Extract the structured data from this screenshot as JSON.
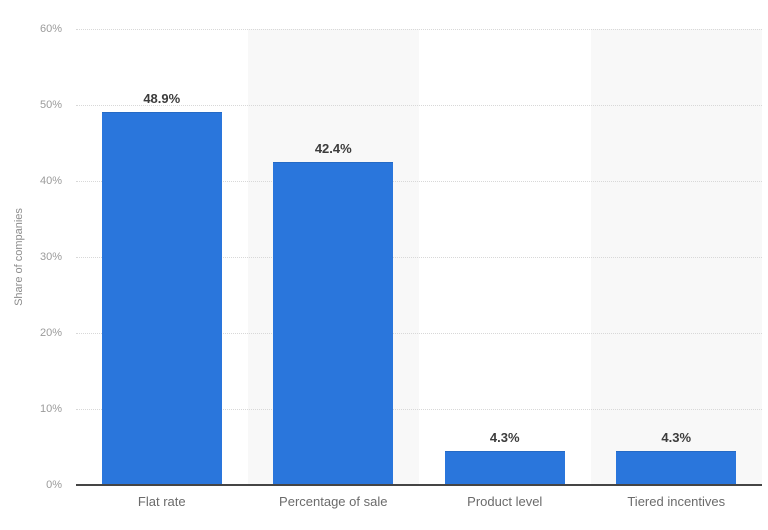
{
  "chart": {
    "colors": {
      "bar": "#2a76dc",
      "band": "#f8f8f8",
      "grid": "#d8d8d8",
      "axis_line": "#454545",
      "tick_label": "#9b9b9b",
      "category_label": "#6b6b6b",
      "value_label": "#3c3c3c",
      "axis_title": "#8c8c8c"
    }
  },
  "chart_data": {
    "type": "bar",
    "categories": [
      "Flat rate",
      "Percentage of sale",
      "Product level",
      "Tiered incentives"
    ],
    "values": [
      48.9,
      42.4,
      4.3,
      4.3
    ],
    "value_labels": [
      "48.9%",
      "42.4%",
      "4.3%",
      "4.3%"
    ],
    "title": "",
    "xlabel": "",
    "ylabel": "Share of companies",
    "ylim": [
      0,
      60
    ],
    "yticks": [
      0,
      10,
      20,
      30,
      40,
      50,
      60
    ],
    "ytick_labels": [
      "0%",
      "10%",
      "20%",
      "30%",
      "40%",
      "50%",
      "60%"
    ],
    "grid": "horizontal-dotted",
    "legend": "none",
    "plot_bands": "alternating-vertical"
  }
}
